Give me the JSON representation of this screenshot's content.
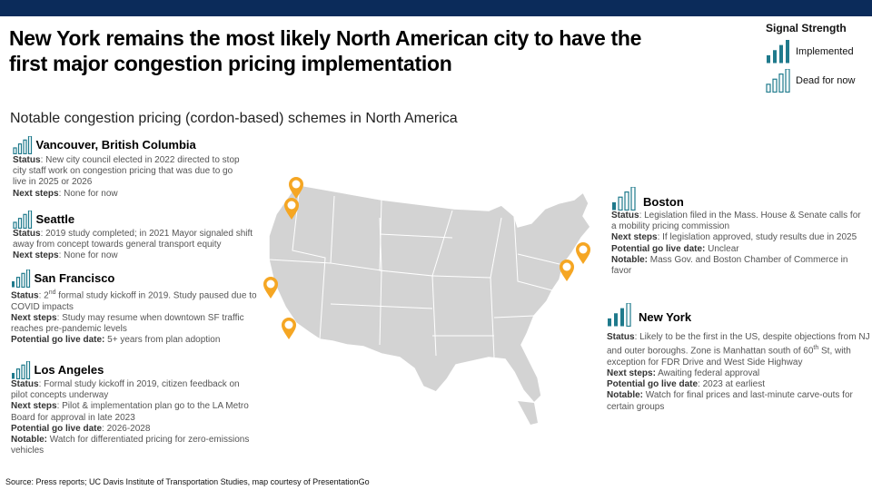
{
  "header": {
    "title": "New York remains the most likely North American city to have the first major congestion pricing implementation",
    "subtitle": "Notable congestion pricing (cordon-based) schemes in North America"
  },
  "legend": {
    "title": "Signal Strength",
    "implemented": "Implemented",
    "dead": "Dead for now"
  },
  "colors": {
    "navy": "#0b2b5a",
    "teal": "#1f7a8c",
    "pin": "#f5a623",
    "map": "#d3d3d3"
  },
  "cities": {
    "vancouver": {
      "name": "Vancouver, British  Columbia",
      "status_label": "Status",
      "status": ": New city council elected in 2022 directed to stop city staff work on congestion pricing that was due to go live in 2025 or 2026",
      "next_label": "Next steps",
      "next": ": None for now"
    },
    "seattle": {
      "name": "Seattle",
      "status_label": "Status",
      "status": ": 2019 study completed; in 2021 Mayor signaled shift away from concept towards general transport equity",
      "next_label": "Next steps",
      "next": ": None for now"
    },
    "sanfrancisco": {
      "name": "San Francisco",
      "status_label": "Status",
      "status_a": ": 2",
      "status_sup": "nd",
      "status_b": " formal study kickoff in 2019. Study paused due to COVID  impacts",
      "next_label": "Next steps",
      "next": ": Study may resume when downtown SF traffic reaches pre-pandemic levels",
      "golive_label": "Potential go live date:",
      "golive": " 5+ years from plan adoption"
    },
    "losangeles": {
      "name": "Los Angeles",
      "status_label": "Status",
      "status": ": Formal study kickoff in 2019, citizen feedback on pilot  concepts underway",
      "next_label": "Next steps",
      "next": ": Pilot & implementation  plan go to the LA Metro Board for approval in late 2023",
      "golive_label": "Potential go live date",
      "golive": ": 2026-2028",
      "notable_label": "Notable:",
      "notable": " Watch for differentiated pricing for zero-emissions vehicles"
    },
    "boston": {
      "name": "Boston",
      "status_label": "Status",
      "status": ": Legislation filed in the Mass. House & Senate calls for a mobility  pricing commission",
      "next_label": "Next steps",
      "next": ": If legislation approved, study results due in 2025",
      "golive_label": "Potential go live date:",
      "golive": " Unclear",
      "notable_label": "Notable:",
      "notable": " Mass Gov. and Boston Chamber of Commerce  in favor"
    },
    "newyork": {
      "name": "New York",
      "status_label": "Status",
      "status_a": ": Likely to be the first in the US,  despite objections from NJ and outer boroughs. Zone is Manhattan  south of 60",
      "status_sup": "th",
      "status_b": " St, with exception for FDR Drive and West Side Highway",
      "next_label": "Next steps:",
      "next": " Awaiting federal approval",
      "golive_label": "Potential go live date",
      "golive": ": 2023 at earliest",
      "notable_label": "Notable:",
      "notable": " Watch for final prices and last-minute carve-outs for certain groups"
    }
  },
  "signal_levels": {
    "vancouver": 0,
    "seattle": 0,
    "sanfrancisco": 1,
    "losangeles": 1,
    "boston": 1,
    "newyork": 3
  },
  "source": "Source: Press reports; UC Davis Institute of Transportation Studies, map courtesy of PresentationGo"
}
